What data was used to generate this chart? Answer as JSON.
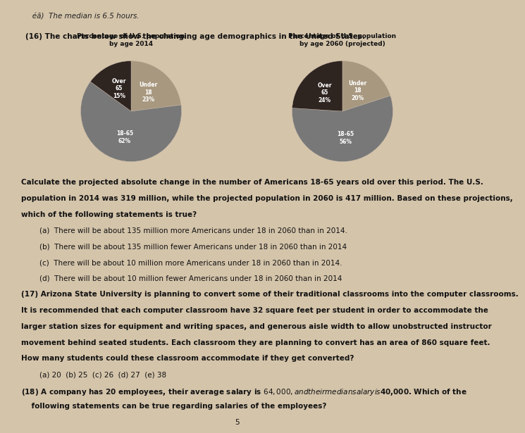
{
  "background_color": "#d4c4aa",
  "page_title_line1": "   éã)  The median is 6.5 hours.",
  "chart_title": "(16) The charts below show the changing age demographics in the United States.",
  "pie1_title": "Percentage of U.S. population\nby age 2014",
  "pie2_title": "Percentage of U.S. population\nby age 2060 (projected)",
  "pie1_values": [
    23,
    62,
    15
  ],
  "pie2_values": [
    20,
    56,
    24
  ],
  "pie1_label_texts": [
    "Under\n18\n23%",
    "18-65\n62%",
    "Over\n65\n15%"
  ],
  "pie2_label_texts": [
    "Under\n18\n20%",
    "18-65\n56%",
    "Over\n65\n24%"
  ],
  "colors": [
    "#a89880",
    "#787878",
    "#2e2420"
  ],
  "body_lines": [
    "Calculate the projected absolute change in the number of Americans 18-65 years old over this period. The U.S.",
    "population in 2014 was 319 million, while the projected population in 2060 is 417 million. Based on these projections,",
    "which of the following statements is true?",
    "        (a)  There will be about 135 million more Americans under 18 in 2060 than in 2014.",
    "        (b)  There will be about 135 million fewer Americans under 18 in 2060 than in 2014",
    "        (c)  There will be about 10 million more Americans under 18 in 2060 than in 2014.",
    "        (d)  There will be about 10 million fewer Americans under 18 in 2060 than in 2014",
    "(17) Arizona State University is planning to convert some of their traditional classrooms into the computer classrooms.",
    "It is recommended that each computer classroom have 32 square feet per student in order to accommodate the",
    "larger station sizes for equipment and writing spaces, and generous aisle width to allow unobstructed instructor",
    "movement behind seated students. Each classroom they are planning to convert has an area of 860 square feet.",
    "How many students could these classroom accommodate if they get converted?",
    "        (a) 20  (b) 25  (c) 26  (d) 27  (e) 38",
    "(18) A company has 20 employees, their average salary is $64,000, and their median salary is $40,000. Which of the",
    "    following statements can be true regarding salaries of the employees?"
  ],
  "bold_lines": [
    0,
    1,
    2,
    7,
    8,
    9,
    10,
    11,
    13,
    14
  ],
  "page_number": "5",
  "font_size_body": 7.5,
  "font_size_pie_title": 6.5,
  "font_size_pie_label": 5.5,
  "font_size_top": 7.5
}
